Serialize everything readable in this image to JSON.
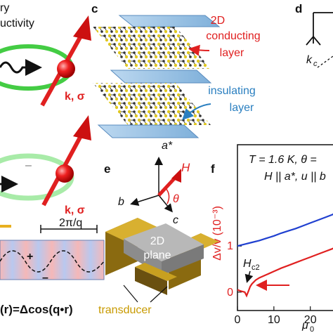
{
  "colors": {
    "red": "#e02020",
    "green": "#44cc44",
    "blue": "#2040d0",
    "gold": "#c8a020",
    "slab": "#8fb8dc",
    "text_blue": "#2a7fc0"
  },
  "panel_a": {
    "label_line1": "ry",
    "label_line2": "uctivity",
    "vector_label": "k, σ"
  },
  "panel_b": {
    "vector_label": "k, σ",
    "minus_sign": "–",
    "wavelength": "2π/q",
    "plus_sign": "+",
    "minus_sign2": "–",
    "formula": "(r)=Δcos(q•r)"
  },
  "panel_c": {
    "letter": "c",
    "label_conducting_line1": "2D",
    "label_conducting_line2": "conducting",
    "label_conducting_line3": "layer",
    "label_insulating_line1": "insulating",
    "label_insulating_line2": "layer"
  },
  "panel_d": {
    "letter": "d",
    "axis_label": "k",
    "axis_sub": "c"
  },
  "panel_e": {
    "letter": "e",
    "axis_a": "a*",
    "axis_b": "b",
    "axis_c": "c",
    "axis_H": "H",
    "angle": "θ",
    "plane_line1": "2D",
    "plane_line2": "plane",
    "transducer": "transducer"
  },
  "panel_f": {
    "letter": "f",
    "condition_line1": "T = 1.6 K, θ =",
    "condition_line2": "H || a*, u || b",
    "ylabel": "Δv/v (10⁻³)",
    "xlabel_partial": "μ",
    "xlabel_sub": "0",
    "annotation": "H",
    "annotation_sub": "c2",
    "chart_data": {
      "type": "line",
      "x_ticks": [
        "0",
        "10",
        "20"
      ],
      "y_ticks": [
        "0",
        "1"
      ],
      "xlim": [
        0,
        27
      ],
      "ylim": [
        -0.4,
        3.2
      ],
      "series": [
        {
          "color": "#2040d0",
          "x": [
            0,
            2,
            4,
            6,
            8,
            10,
            12,
            14,
            16,
            18,
            20,
            22,
            24,
            26,
            27
          ],
          "y": [
            1.0,
            1.04,
            1.08,
            1.12,
            1.17,
            1.22,
            1.28,
            1.33,
            1.38,
            1.44,
            1.5,
            1.56,
            1.62,
            1.68,
            1.72
          ]
        },
        {
          "color": "#e02020",
          "x": [
            0,
            1,
            2,
            2.5,
            3,
            3.5,
            4,
            5,
            6,
            8,
            10,
            12,
            14,
            16,
            18,
            20,
            22,
            24,
            26,
            27
          ],
          "y": [
            0.05,
            0.02,
            0.0,
            -0.08,
            0.02,
            0.12,
            0.18,
            0.26,
            0.31,
            0.38,
            0.45,
            0.52,
            0.58,
            0.64,
            0.7,
            0.76,
            0.82,
            0.88,
            0.94,
            0.98
          ]
        }
      ]
    }
  }
}
